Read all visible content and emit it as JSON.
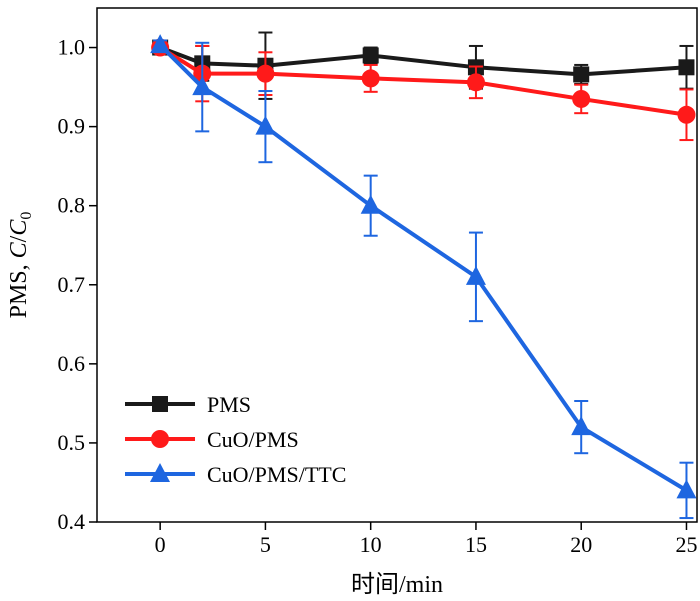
{
  "chart_data": {
    "type": "line",
    "title": "",
    "xlabel": "时间/min",
    "ylabel_prefix": "PMS, ",
    "ylabel_italic": "C",
    "ylabel_sep": "/",
    "ylabel_sub_base": "C",
    "ylabel_sub": "0",
    "xlim": [
      -3,
      25.5
    ],
    "ylim": [
      0.4,
      1.05
    ],
    "xticks": [
      0,
      5,
      10,
      15,
      20,
      25
    ],
    "yticks": [
      0.4,
      0.5,
      0.6,
      0.7,
      0.8,
      0.9,
      1.0
    ],
    "xtick_labels": [
      "0",
      "5",
      "10",
      "15",
      "20",
      "25"
    ],
    "ytick_labels": [
      "0.4",
      "0.5",
      "0.6",
      "0.7",
      "0.8",
      "0.9",
      "1.0"
    ],
    "grid": false,
    "legend_position": "bottom-left",
    "series": [
      {
        "name": "PMS",
        "color": "#1a1a1a",
        "marker": "square",
        "x": [
          0,
          2,
          5,
          10,
          15,
          20,
          25
        ],
        "y": [
          1.0,
          0.98,
          0.977,
          0.99,
          0.975,
          0.966,
          0.975
        ],
        "err": [
          0.006,
          0.022,
          0.042,
          0.01,
          0.027,
          0.012,
          0.027
        ]
      },
      {
        "name": "CuO/PMS",
        "color": "#ff1a1a",
        "marker": "circle",
        "x": [
          0,
          2,
          5,
          10,
          15,
          20,
          25
        ],
        "y": [
          1.0,
          0.967,
          0.967,
          0.961,
          0.956,
          0.935,
          0.915
        ],
        "err": [
          0.006,
          0.035,
          0.027,
          0.017,
          0.02,
          0.018,
          0.032
        ]
      },
      {
        "name": "CuO/PMS/TTC",
        "color": "#1e66e0",
        "marker": "triangle",
        "x": [
          0,
          2,
          5,
          10,
          15,
          20,
          25
        ],
        "y": [
          1.003,
          0.95,
          0.9,
          0.8,
          0.71,
          0.52,
          0.44
        ],
        "err": [
          0.006,
          0.056,
          0.045,
          0.038,
          0.056,
          0.033,
          0.035
        ]
      }
    ]
  }
}
